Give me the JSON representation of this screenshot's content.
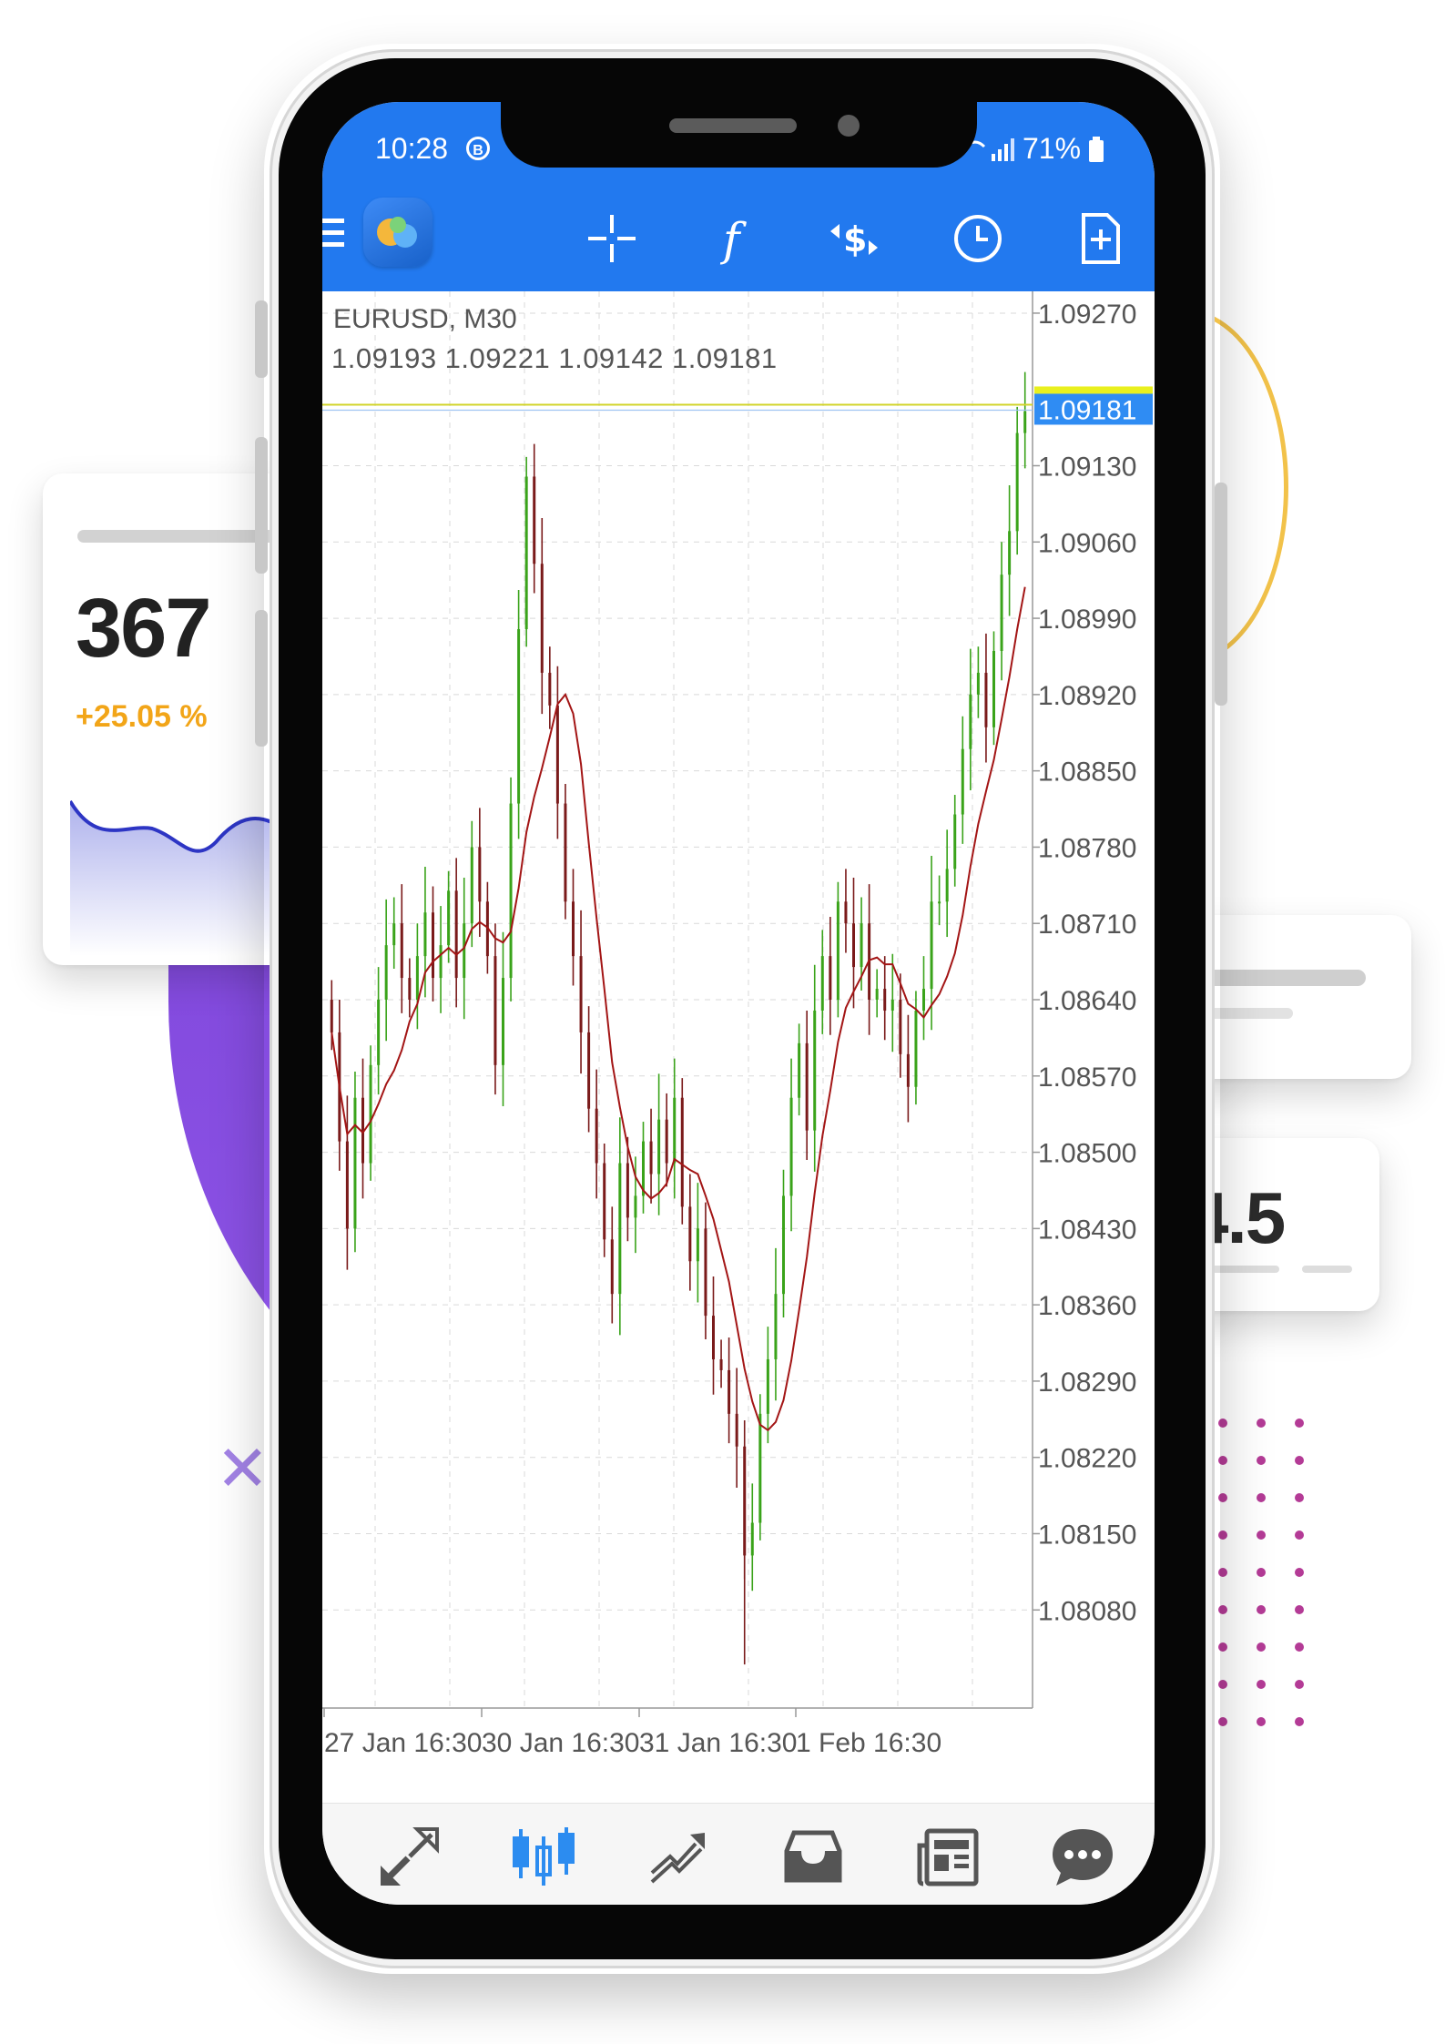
{
  "background": {
    "stat_card": {
      "value": "367",
      "change": "+25.05 %",
      "change_color": "#f2a518"
    },
    "side_card": {
      "value": "4.5"
    },
    "colors": {
      "purple": "#7d45d9",
      "gold": "#f2c24a",
      "dots": "#b43b96"
    }
  },
  "status_bar": {
    "time": "10:28",
    "battery": "71%"
  },
  "app": {
    "header_color": "#2279ef",
    "toolbar": {
      "icons": [
        "crosshair-icon",
        "indicators-icon",
        "symbols-icon",
        "timeframe-icon",
        "new-order-icon"
      ]
    }
  },
  "chart": {
    "symbol_line": "EURUSD, M30",
    "ohlc_line": "1.09193 1.09221 1.09142 1.09181",
    "current_price_label": "1.09181"
  },
  "chart_data": {
    "type": "candlestick",
    "title": "EURUSD, M30",
    "ohlc": {
      "open": 1.09193,
      "high": 1.09221,
      "low": 1.09142,
      "close": 1.09181
    },
    "y_ticks": [
      "1.09270",
      "1.09130",
      "1.09060",
      "1.08990",
      "1.08920",
      "1.08850",
      "1.08780",
      "1.08710",
      "1.08640",
      "1.08570",
      "1.08500",
      "1.08430",
      "1.08360",
      "1.08290",
      "1.08220",
      "1.08150",
      "1.08080"
    ],
    "ylim": [
      1.0799,
      1.0929
    ],
    "x_ticks": [
      "27 Jan 16:30",
      "30 Jan 16:30",
      "31 Jan 16:30",
      "1 Feb 16:30"
    ],
    "x_tick_index": [
      2,
      32,
      62,
      92
    ],
    "bull_color": "#3aa31a",
    "bear_color": "#7a1a1a",
    "ma_color": "#a31515",
    "bid_line_color": "#d2d42c",
    "price_tag_color": "#2f8cf3",
    "closes": [
      1.0861,
      1.0851,
      1.0843,
      1.0855,
      1.0849,
      1.0858,
      1.0864,
      1.0869,
      1.0871,
      1.0866,
      1.0864,
      1.0868,
      1.0872,
      1.0866,
      1.0869,
      1.0874,
      1.0866,
      1.0871,
      1.0878,
      1.0873,
      1.0868,
      1.0858,
      1.0866,
      1.0882,
      1.0898,
      1.0912,
      1.0904,
      1.0894,
      1.0891,
      1.0882,
      1.0873,
      1.0868,
      1.0861,
      1.0854,
      1.0849,
      1.0842,
      1.0837,
      1.0849,
      1.0844,
      1.0846,
      1.0851,
      1.0848,
      1.0853,
      1.0849,
      1.0855,
      1.0845,
      1.084,
      1.0843,
      1.0835,
      1.0831,
      1.083,
      1.0826,
      1.0823,
      1.0813,
      1.0816,
      1.0826,
      1.0831,
      1.0837,
      1.0846,
      1.0855,
      1.086,
      1.0852,
      1.0863,
      1.0868,
      1.0864,
      1.0873,
      1.0871,
      1.0867,
      1.0871,
      1.0864,
      1.0865,
      1.0863,
      1.0864,
      1.0859,
      1.0856,
      1.0863,
      1.0865,
      1.0873,
      1.0873,
      1.0876,
      1.0881,
      1.0887,
      1.0892,
      1.0894,
      1.0889,
      1.0896,
      1.0903,
      1.0907,
      1.0916,
      1.0918
    ]
  }
}
